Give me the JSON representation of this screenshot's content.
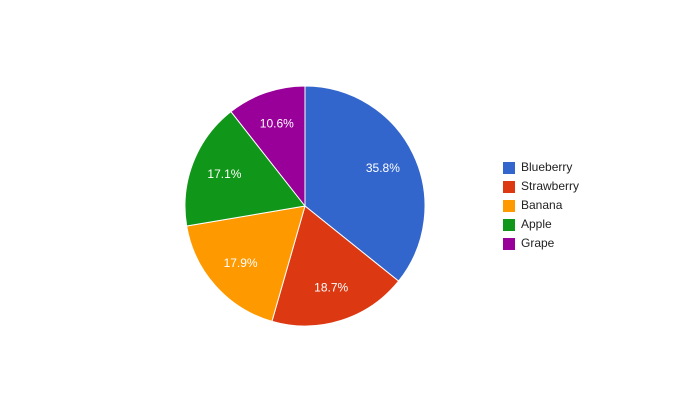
{
  "chart_data": {
    "type": "pie",
    "categories": [
      "Blueberry",
      "Strawberry",
      "Banana",
      "Apple",
      "Grape"
    ],
    "values": [
      35.8,
      18.7,
      17.9,
      17.1,
      10.6
    ],
    "value_labels": [
      "35.8%",
      "18.7%",
      "17.9%",
      "17.1%",
      "10.6%"
    ],
    "colors": [
      "#3366cc",
      "#dc3912",
      "#ff9900",
      "#109618",
      "#990099"
    ],
    "legend": "right"
  }
}
